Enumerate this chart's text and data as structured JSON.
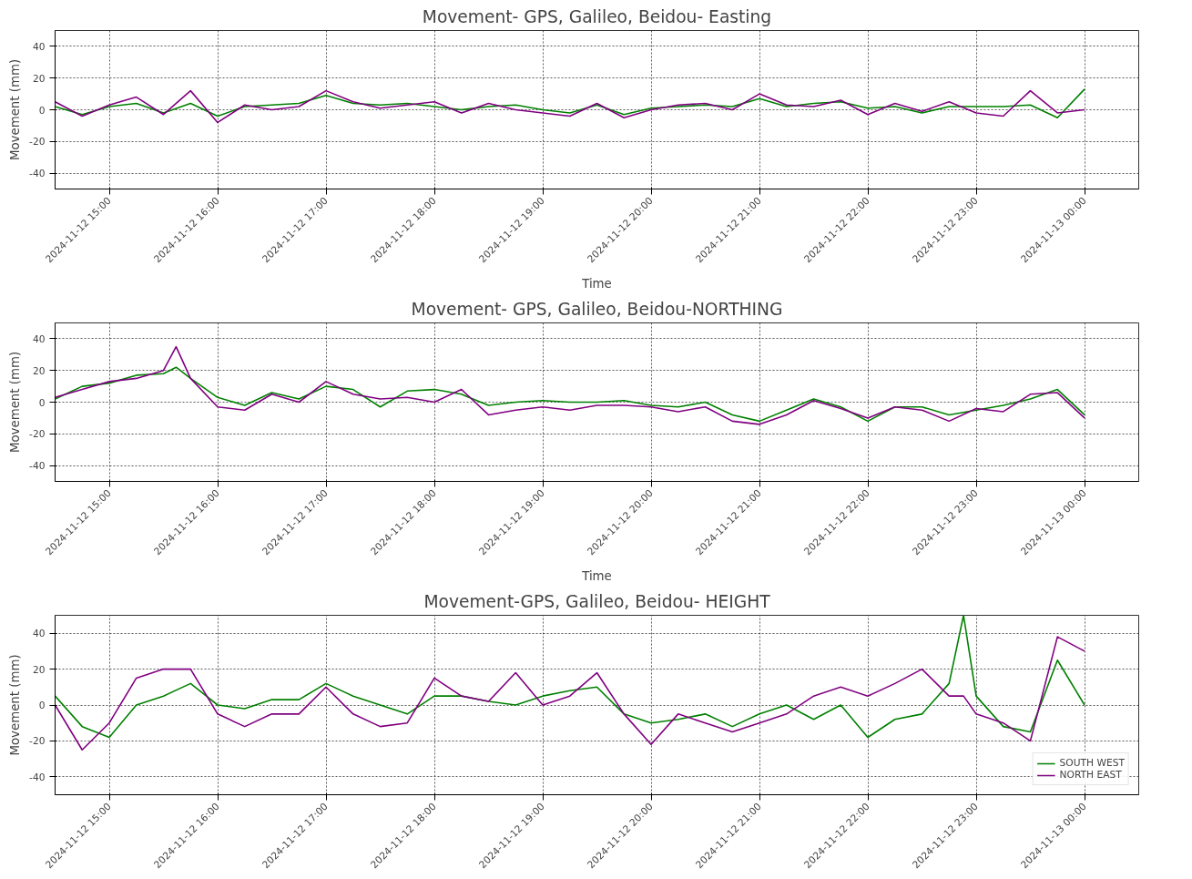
{
  "chart_data": [
    {
      "type": "line",
      "title": "Movement- GPS, Galileo, Beidou- Easting",
      "xlabel": "Time",
      "ylabel": "Movement (mm)",
      "x": [
        "2024-11-12T14:30",
        "2024-11-12T14:45",
        "2024-11-12T15:00",
        "2024-11-12T15:15",
        "2024-11-12T15:30",
        "2024-11-12T15:45",
        "2024-11-12T16:00",
        "2024-11-12T16:15",
        "2024-11-12T16:30",
        "2024-11-12T16:45",
        "2024-11-12T17:00",
        "2024-11-12T17:15",
        "2024-11-12T17:30",
        "2024-11-12T17:45",
        "2024-11-12T18:00",
        "2024-11-12T18:15",
        "2024-11-12T18:30",
        "2024-11-12T18:45",
        "2024-11-12T19:00",
        "2024-11-12T19:15",
        "2024-11-12T19:30",
        "2024-11-12T19:45",
        "2024-11-12T20:00",
        "2024-11-12T20:15",
        "2024-11-12T20:30",
        "2024-11-12T20:45",
        "2024-11-12T21:00",
        "2024-11-12T21:15",
        "2024-11-12T21:30",
        "2024-11-12T21:45",
        "2024-11-12T22:00",
        "2024-11-12T22:15",
        "2024-11-12T22:30",
        "2024-11-12T22:45",
        "2024-11-12T23:00",
        "2024-11-12T23:15",
        "2024-11-12T23:30",
        "2024-11-12T23:45",
        "2024-11-13T00:00"
      ],
      "series": [
        {
          "color": "#008000",
          "values": [
            2,
            -3,
            2,
            4,
            -2,
            4,
            -4,
            2,
            3,
            4,
            9,
            4,
            3,
            4,
            2,
            0,
            2,
            3,
            0,
            -2,
            3,
            -3,
            1,
            2,
            3,
            2,
            7,
            2,
            4,
            5,
            1,
            2,
            -2,
            2,
            2,
            2,
            3,
            -5,
            13
          ]
        },
        {
          "color": "#800080",
          "values": [
            5,
            -4,
            3,
            8,
            -3,
            12,
            -8,
            3,
            0,
            2,
            12,
            5,
            1,
            3,
            5,
            -2,
            4,
            0,
            -2,
            -4,
            4,
            -5,
            0,
            3,
            4,
            0,
            10,
            3,
            2,
            6,
            -3,
            4,
            -1,
            5,
            -2,
            -4,
            12,
            -2,
            0
          ]
        }
      ],
      "xlim": [
        "2024-11-12T14:30",
        "2024-11-13T00:30"
      ],
      "xticks": [
        {
          "value": "2024-11-12T15:00",
          "label": "2024-11-12 15:00"
        },
        {
          "value": "2024-11-12T16:00",
          "label": "2024-11-12 16:00"
        },
        {
          "value": "2024-11-12T17:00",
          "label": "2024-11-12 17:00"
        },
        {
          "value": "2024-11-12T18:00",
          "label": "2024-11-12 18:00"
        },
        {
          "value": "2024-11-12T19:00",
          "label": "2024-11-12 19:00"
        },
        {
          "value": "2024-11-12T20:00",
          "label": "2024-11-12 20:00"
        },
        {
          "value": "2024-11-12T21:00",
          "label": "2024-11-12 21:00"
        },
        {
          "value": "2024-11-12T22:00",
          "label": "2024-11-12 22:00"
        },
        {
          "value": "2024-11-12T23:00",
          "label": "2024-11-12 23:00"
        },
        {
          "value": "2024-11-13T00:00",
          "label": "2024-11-13 00:00"
        }
      ],
      "ylim": [
        -50,
        50
      ],
      "yticks": [
        -40,
        -20,
        0,
        20,
        40
      ],
      "grid": true
    },
    {
      "type": "line",
      "title": "Movement- GPS, Galileo, Beidou-NORTHING",
      "xlabel": "Time",
      "ylabel": "Movement (mm)",
      "x": [
        "2024-11-12T14:30",
        "2024-11-12T14:45",
        "2024-11-12T15:00",
        "2024-11-12T15:15",
        "2024-11-12T15:30",
        "2024-11-12T15:37",
        "2024-11-12T15:45",
        "2024-11-12T16:00",
        "2024-11-12T16:15",
        "2024-11-12T16:30",
        "2024-11-12T16:45",
        "2024-11-12T17:00",
        "2024-11-12T17:15",
        "2024-11-12T17:30",
        "2024-11-12T17:45",
        "2024-11-12T18:00",
        "2024-11-12T18:15",
        "2024-11-12T18:30",
        "2024-11-12T18:45",
        "2024-11-12T19:00",
        "2024-11-12T19:15",
        "2024-11-12T19:30",
        "2024-11-12T19:45",
        "2024-11-12T20:00",
        "2024-11-12T20:15",
        "2024-11-12T20:30",
        "2024-11-12T20:45",
        "2024-11-12T21:00",
        "2024-11-12T21:15",
        "2024-11-12T21:30",
        "2024-11-12T21:45",
        "2024-11-12T22:00",
        "2024-11-12T22:15",
        "2024-11-12T22:30",
        "2024-11-12T22:45",
        "2024-11-12T23:00",
        "2024-11-12T23:15",
        "2024-11-12T23:30",
        "2024-11-12T23:45",
        "2024-11-13T00:00"
      ],
      "series": [
        {
          "color": "#008000",
          "values": [
            2,
            10,
            12,
            17,
            18,
            22,
            15,
            3,
            -2,
            6,
            2,
            10,
            8,
            -3,
            7,
            8,
            5,
            -2,
            0,
            1,
            0,
            0,
            1,
            -2,
            -3,
            0,
            -8,
            -12,
            -5,
            2,
            -3,
            -12,
            -3,
            -3,
            -8,
            -5,
            -2,
            2,
            8,
            -8
          ]
        },
        {
          "color": "#800080",
          "values": [
            3,
            8,
            13,
            15,
            20,
            35,
            15,
            -3,
            -5,
            5,
            0,
            13,
            5,
            2,
            3,
            0,
            8,
            -8,
            -5,
            -3,
            -5,
            -2,
            -2,
            -3,
            -6,
            -3,
            -12,
            -14,
            -8,
            1,
            -4,
            -10,
            -3,
            -5,
            -12,
            -4,
            -6,
            5,
            6,
            -10
          ]
        }
      ],
      "xlim": [
        "2024-11-12T14:30",
        "2024-11-13T00:30"
      ],
      "xticks": [
        {
          "value": "2024-11-12T15:00",
          "label": "2024-11-12 15:00"
        },
        {
          "value": "2024-11-12T16:00",
          "label": "2024-11-12 16:00"
        },
        {
          "value": "2024-11-12T17:00",
          "label": "2024-11-12 17:00"
        },
        {
          "value": "2024-11-12T18:00",
          "label": "2024-11-12 18:00"
        },
        {
          "value": "2024-11-12T19:00",
          "label": "2024-11-12 19:00"
        },
        {
          "value": "2024-11-12T20:00",
          "label": "2024-11-12 20:00"
        },
        {
          "value": "2024-11-12T21:00",
          "label": "2024-11-12 21:00"
        },
        {
          "value": "2024-11-12T22:00",
          "label": "2024-11-12 22:00"
        },
        {
          "value": "2024-11-12T23:00",
          "label": "2024-11-12 23:00"
        },
        {
          "value": "2024-11-13T00:00",
          "label": "2024-11-13 00:00"
        }
      ],
      "ylim": [
        -50,
        50
      ],
      "yticks": [
        -40,
        -20,
        0,
        20,
        40
      ],
      "grid": true
    },
    {
      "type": "line",
      "title": "Movement-GPS, Galileo, Beidou- HEIGHT",
      "ylabel": "Movement (mm)",
      "x": [
        "2024-11-12T14:30",
        "2024-11-12T14:45",
        "2024-11-12T15:00",
        "2024-11-12T15:15",
        "2024-11-12T15:30",
        "2024-11-12T15:45",
        "2024-11-12T16:00",
        "2024-11-12T16:15",
        "2024-11-12T16:30",
        "2024-11-12T16:45",
        "2024-11-12T17:00",
        "2024-11-12T17:15",
        "2024-11-12T17:30",
        "2024-11-12T17:45",
        "2024-11-12T18:00",
        "2024-11-12T18:15",
        "2024-11-12T18:30",
        "2024-11-12T18:45",
        "2024-11-12T19:00",
        "2024-11-12T19:15",
        "2024-11-12T19:30",
        "2024-11-12T19:45",
        "2024-11-12T20:00",
        "2024-11-12T20:15",
        "2024-11-12T20:30",
        "2024-11-12T20:45",
        "2024-11-12T21:00",
        "2024-11-12T21:15",
        "2024-11-12T21:30",
        "2024-11-12T21:45",
        "2024-11-12T22:00",
        "2024-11-12T22:15",
        "2024-11-12T22:30",
        "2024-11-12T22:45",
        "2024-11-12T22:53",
        "2024-11-12T23:00",
        "2024-11-12T23:15",
        "2024-11-12T23:30",
        "2024-11-12T23:45",
        "2024-11-13T00:00"
      ],
      "series": [
        {
          "name": "SOUTH WEST",
          "color": "#008000",
          "values": [
            5,
            -12,
            -18,
            0,
            5,
            12,
            0,
            -2,
            3,
            3,
            12,
            5,
            0,
            -5,
            5,
            5,
            2,
            0,
            5,
            8,
            10,
            -5,
            -10,
            -8,
            -5,
            -12,
            -5,
            0,
            -8,
            0,
            -18,
            -8,
            -5,
            12,
            50,
            5,
            -12,
            -15,
            25,
            0
          ]
        },
        {
          "name": "NORTH EAST",
          "color": "#800080",
          "values": [
            0,
            -25,
            -10,
            15,
            20,
            20,
            -5,
            -12,
            -5,
            -5,
            10,
            -5,
            -12,
            -10,
            15,
            5,
            2,
            18,
            0,
            5,
            18,
            -5,
            -22,
            -5,
            -10,
            -15,
            -10,
            -5,
            5,
            10,
            5,
            12,
            20,
            5,
            5,
            -5,
            -10,
            -20,
            38,
            30
          ]
        }
      ],
      "xlim": [
        "2024-11-12T14:30",
        "2024-11-13T00:30"
      ],
      "xticks": [
        {
          "value": "2024-11-12T15:00",
          "label": "2024-11-12 15:00"
        },
        {
          "value": "2024-11-12T16:00",
          "label": "2024-11-12 16:00"
        },
        {
          "value": "2024-11-12T17:00",
          "label": "2024-11-12 17:00"
        },
        {
          "value": "2024-11-12T18:00",
          "label": "2024-11-12 18:00"
        },
        {
          "value": "2024-11-12T19:00",
          "label": "2024-11-12 19:00"
        },
        {
          "value": "2024-11-12T20:00",
          "label": "2024-11-12 20:00"
        },
        {
          "value": "2024-11-12T21:00",
          "label": "2024-11-12 21:00"
        },
        {
          "value": "2024-11-12T22:00",
          "label": "2024-11-12 22:00"
        },
        {
          "value": "2024-11-12T23:00",
          "label": "2024-11-12 23:00"
        },
        {
          "value": "2024-11-13T00:00",
          "label": "2024-11-13 00:00"
        }
      ],
      "ylim": [
        -50,
        50
      ],
      "yticks": [
        -40,
        -20,
        0,
        20,
        40
      ],
      "grid": true,
      "legend": "bottom right"
    }
  ]
}
